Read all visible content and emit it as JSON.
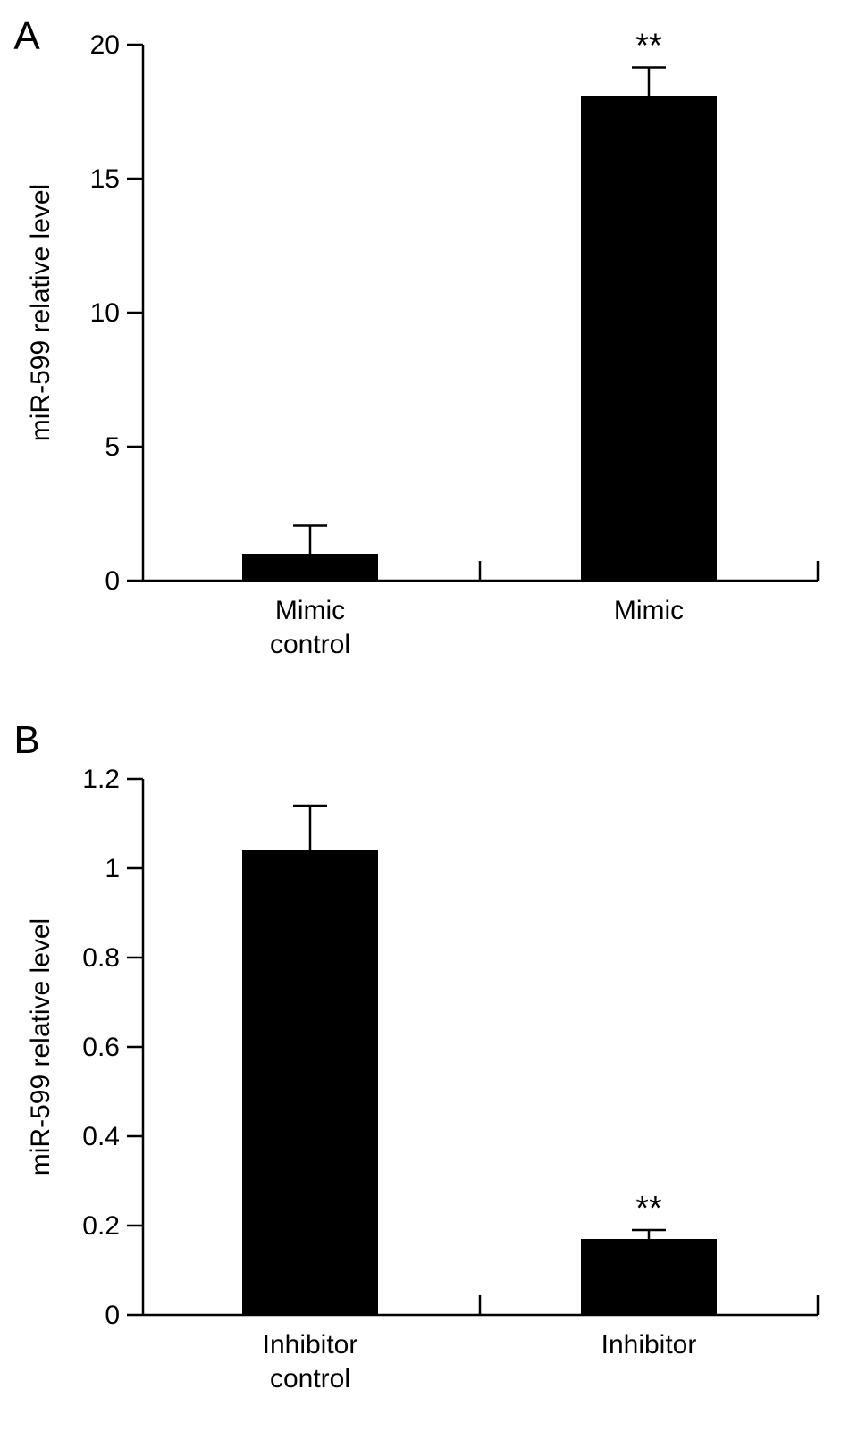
{
  "chart_data": [
    {
      "type": "bar",
      "panel": "A",
      "title": "",
      "xlabel": "",
      "ylabel": "miR-599 relative level",
      "ylim": [
        0,
        20
      ],
      "yticks": [
        "0",
        "5",
        "10",
        "15",
        "20"
      ],
      "grid": false,
      "categories": [
        [
          "Mimic",
          "control"
        ],
        [
          "Mimic"
        ]
      ],
      "values": [
        1.0,
        18.1
      ],
      "errors": [
        1.05,
        1.05
      ],
      "annotations": [
        "",
        "**"
      ],
      "bar_color": "#000000"
    },
    {
      "type": "bar",
      "panel": "B",
      "title": "",
      "xlabel": "",
      "ylabel": "miR-599 relative level",
      "ylim": [
        0,
        1.2
      ],
      "yticks": [
        "0",
        "0.2",
        "0.4",
        "0.6",
        "0.8",
        "1",
        "1.2"
      ],
      "grid": false,
      "categories": [
        [
          "Inhibitor",
          "control"
        ],
        [
          "Inhibitor"
        ]
      ],
      "values": [
        1.04,
        0.17
      ],
      "errors": [
        0.1,
        0.02
      ],
      "annotations": [
        "",
        "**"
      ],
      "bar_color": "#000000"
    }
  ]
}
